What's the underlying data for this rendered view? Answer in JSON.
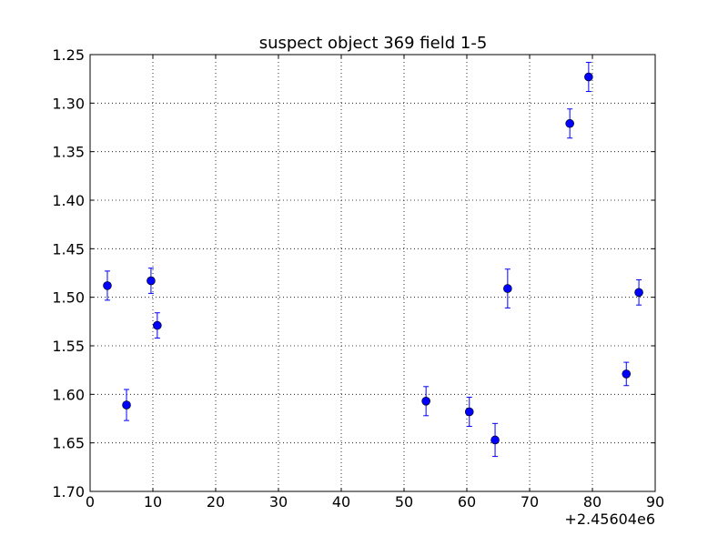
{
  "chart_data": {
    "type": "errorbar",
    "title": "suspect object 369 field 1-5",
    "x_offset_label": "+2.45604e6",
    "x": [
      2.75,
      5.8,
      9.7,
      10.7,
      53.5,
      60.4,
      64.5,
      66.5,
      76.4,
      79.4,
      85.4,
      87.4
    ],
    "y": [
      1.488,
      1.611,
      1.483,
      1.529,
      1.607,
      1.618,
      1.647,
      1.491,
      1.321,
      1.273,
      1.579,
      1.495
    ],
    "yerr": [
      0.015,
      0.016,
      0.013,
      0.013,
      0.015,
      0.015,
      0.017,
      0.02,
      0.015,
      0.015,
      0.012,
      0.013
    ],
    "color": "#0000ff",
    "xlim": [
      0,
      90
    ],
    "xticks": [
      0,
      10,
      20,
      30,
      40,
      50,
      60,
      70,
      80,
      90
    ],
    "ylim": [
      1.7,
      1.25
    ],
    "yticks": [
      1.25,
      {
        "value": 1.3,
        "label": "1.30"
      },
      1.35,
      {
        "value": 1.4,
        "label": "1.40"
      },
      1.45,
      {
        "value": 1.5,
        "label": "1.50"
      },
      1.55,
      {
        "value": 1.6,
        "label": "1.60"
      },
      1.65,
      {
        "value": 1.7,
        "label": "1.70"
      }
    ],
    "grid": true
  }
}
